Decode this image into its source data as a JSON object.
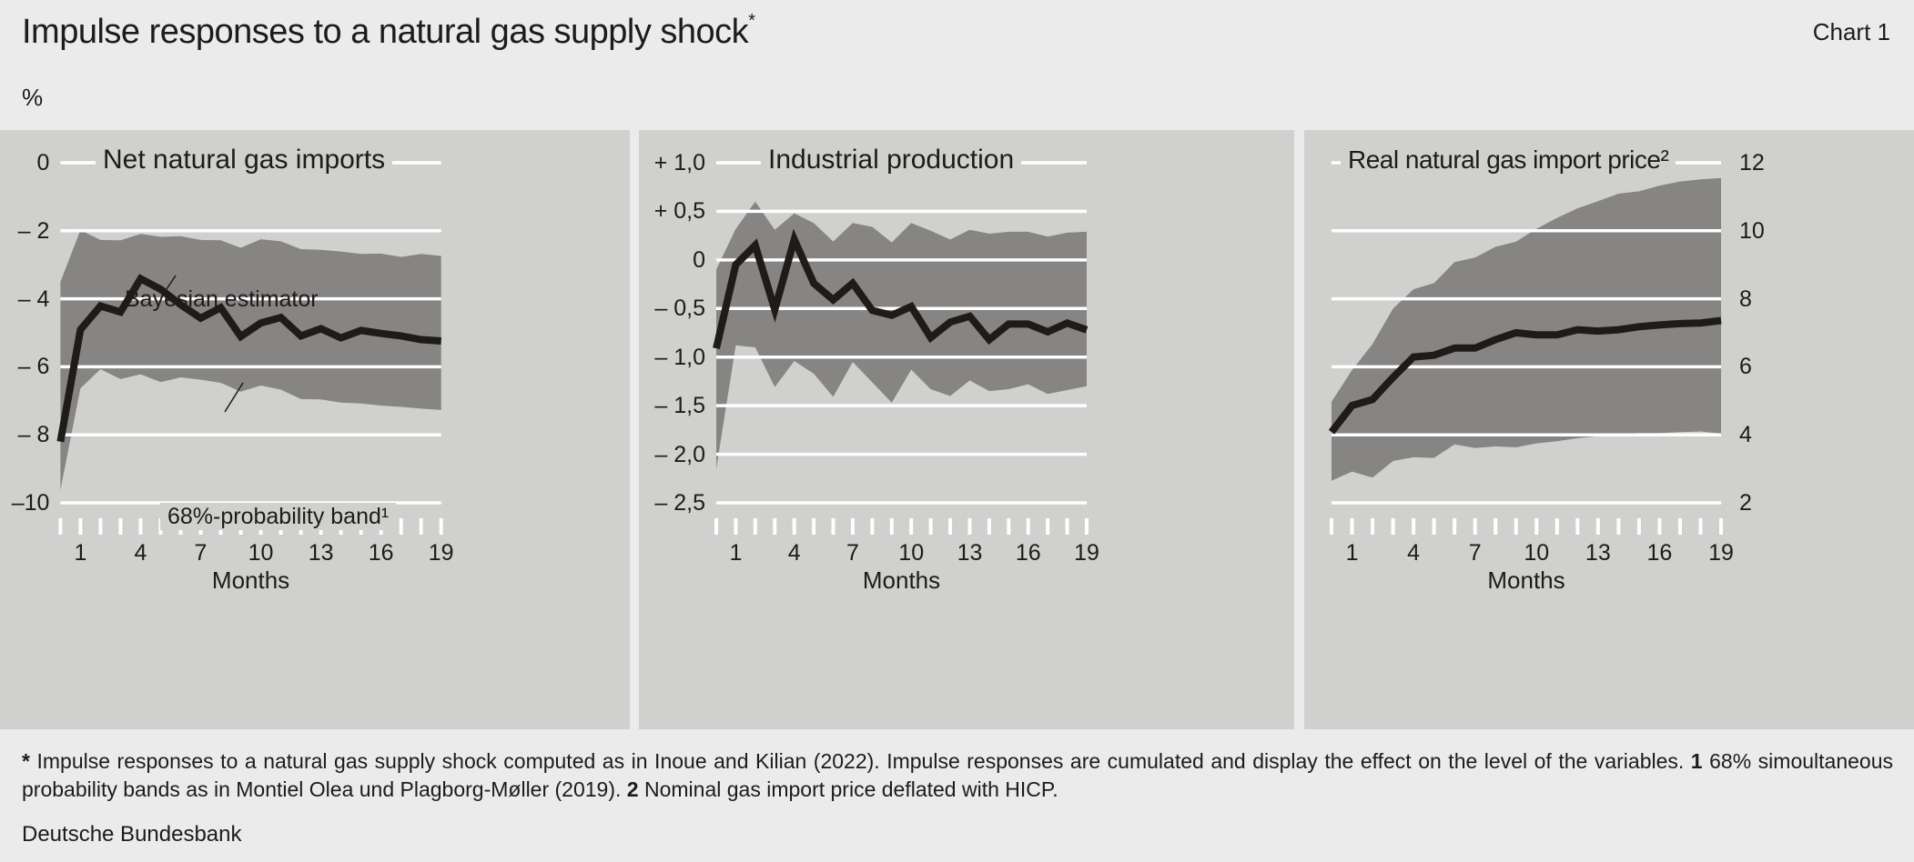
{
  "header": {
    "title": "Impulse responses to a natural gas supply shock",
    "title_mark": "*",
    "chart_label": "Chart 1",
    "unit": "%"
  },
  "colors": {
    "panel_bg": "#d0d0cf",
    "band": "#868584",
    "line": "#1e1b19",
    "grid": "#ffffff",
    "page_bg": "#ebebeb"
  },
  "chart_data": [
    {
      "type": "area+line",
      "title": "Net natural gas imports",
      "xlabel": "Months",
      "x": [
        0,
        1,
        2,
        3,
        4,
        5,
        6,
        7,
        8,
        9,
        10,
        11,
        12,
        13,
        14,
        15,
        16,
        17,
        18,
        19
      ],
      "xticklabels": [
        "1",
        "4",
        "7",
        "10",
        "13",
        "16",
        "19"
      ],
      "xtickvalues": [
        1,
        4,
        7,
        10,
        13,
        16,
        19
      ],
      "ylim": [
        -10,
        0
      ],
      "yticks": [
        0,
        -2,
        -4,
        -6,
        -8,
        -10
      ],
      "yticklabels": [
        "0",
        "– 2",
        "– 4",
        "– 6",
        "– 8",
        "–10"
      ],
      "yaxis_side": "left",
      "grid": true,
      "annotations": [
        "Bayesian estimator",
        "68%-probability band¹"
      ],
      "series": [
        {
          "name": "Bayesian estimator",
          "kind": "line",
          "values": [
            -8.2,
            -4.91,
            -4.21,
            -4.39,
            -3.41,
            -3.72,
            -4.17,
            -4.57,
            -4.26,
            -5.11,
            -4.71,
            -4.55,
            -5.09,
            -4.88,
            -5.15,
            -4.93,
            -5.02,
            -5.09,
            -5.2,
            -5.24
          ]
        },
        {
          "name": "68%-probability band¹",
          "kind": "band",
          "upper": [
            -3.5,
            -1.98,
            -2.27,
            -2.28,
            -2.09,
            -2.18,
            -2.16,
            -2.27,
            -2.28,
            -2.5,
            -2.25,
            -2.31,
            -2.54,
            -2.56,
            -2.61,
            -2.68,
            -2.67,
            -2.77,
            -2.68,
            -2.74
          ],
          "lower": [
            -9.62,
            -6.63,
            -6.07,
            -6.36,
            -6.22,
            -6.45,
            -6.31,
            -6.38,
            -6.47,
            -6.73,
            -6.55,
            -6.67,
            -6.95,
            -6.96,
            -7.05,
            -7.08,
            -7.14,
            -7.18,
            -7.23,
            -7.27
          ]
        }
      ]
    },
    {
      "type": "area+line",
      "title": "Industrial production",
      "xlabel": "Months",
      "x": [
        0,
        1,
        2,
        3,
        4,
        5,
        6,
        7,
        8,
        9,
        10,
        11,
        12,
        13,
        14,
        15,
        16,
        17,
        18,
        19
      ],
      "xticklabels": [
        "1",
        "4",
        "7",
        "10",
        "13",
        "16",
        "19"
      ],
      "xtickvalues": [
        1,
        4,
        7,
        10,
        13,
        16,
        19
      ],
      "ylim": [
        -2.5,
        1.0
      ],
      "yticks": [
        1.0,
        0.5,
        0,
        -0.5,
        -1.0,
        -1.5,
        -2.0,
        -2.5
      ],
      "yticklabels": [
        "+ 1,0",
        "+ 0,5",
        "0",
        "– 0,5",
        "– 1,0",
        "– 1,5",
        "– 2,0",
        "– 2,5"
      ],
      "yaxis_side": "left",
      "grid": true,
      "series": [
        {
          "kind": "line",
          "values": [
            -0.91,
            -0.05,
            0.15,
            -0.51,
            0.21,
            -0.24,
            -0.41,
            -0.24,
            -0.52,
            -0.57,
            -0.48,
            -0.8,
            -0.64,
            -0.58,
            -0.82,
            -0.66,
            -0.66,
            -0.74,
            -0.65,
            -0.72
          ]
        },
        {
          "kind": "band",
          "upper": [
            -0.1,
            0.32,
            0.6,
            0.31,
            0.48,
            0.38,
            0.19,
            0.38,
            0.34,
            0.18,
            0.38,
            0.3,
            0.21,
            0.31,
            0.27,
            0.29,
            0.29,
            0.24,
            0.28,
            0.29
          ],
          "lower": [
            -2.15,
            -0.88,
            -0.9,
            -1.31,
            -1.04,
            -1.17,
            -1.41,
            -1.05,
            -1.26,
            -1.47,
            -1.13,
            -1.33,
            -1.4,
            -1.24,
            -1.35,
            -1.33,
            -1.28,
            -1.38,
            -1.34,
            -1.3
          ]
        }
      ]
    },
    {
      "type": "area+line",
      "title": "Real natural gas import price²",
      "xlabel": "Months",
      "x": [
        0,
        1,
        2,
        3,
        4,
        5,
        6,
        7,
        8,
        9,
        10,
        11,
        12,
        13,
        14,
        15,
        16,
        17,
        18,
        19
      ],
      "xticklabels": [
        "1",
        "4",
        "7",
        "10",
        "13",
        "16",
        "19"
      ],
      "xtickvalues": [
        1,
        4,
        7,
        10,
        13,
        16,
        19
      ],
      "ylim": [
        2,
        12
      ],
      "yticks": [
        12,
        10,
        8,
        6,
        4,
        2
      ],
      "yticklabels": [
        "12",
        "10",
        "8",
        "6",
        "4",
        "2"
      ],
      "yaxis_side": "right",
      "grid": true,
      "series": [
        {
          "kind": "line",
          "values": [
            4.08,
            4.86,
            5.04,
            5.69,
            6.29,
            6.34,
            6.55,
            6.55,
            6.8,
            7.0,
            6.94,
            6.94,
            7.09,
            7.05,
            7.09,
            7.18,
            7.23,
            7.27,
            7.29,
            7.36
          ]
        },
        {
          "kind": "band",
          "upper": [
            4.97,
            5.9,
            6.67,
            7.71,
            8.28,
            8.46,
            9.08,
            9.21,
            9.53,
            9.68,
            10.06,
            10.38,
            10.66,
            10.87,
            11.09,
            11.16,
            11.33,
            11.45,
            11.51,
            11.55
          ],
          "lower": [
            2.65,
            2.92,
            2.74,
            3.23,
            3.34,
            3.32,
            3.72,
            3.61,
            3.66,
            3.63,
            3.75,
            3.81,
            3.9,
            3.96,
            4.02,
            4.05,
            4.05,
            4.08,
            4.1,
            4.04
          ]
        }
      ]
    }
  ],
  "footer": {
    "star": "*",
    "note_star": " Impulse responses to a natural gas supply shock computed as in Inoue and Kilian (2022). Impulse responses are cumulated and display the effect on the level of the variables. ",
    "num1": "1",
    "note1": " 68% simoultaneous probability bands as in Montiel Olea und Plagborg-Møller (2019). ",
    "num2": "2",
    "note2": " Nominal gas import price deflated with HICP.",
    "source": "Deutsche Bundesbank"
  }
}
